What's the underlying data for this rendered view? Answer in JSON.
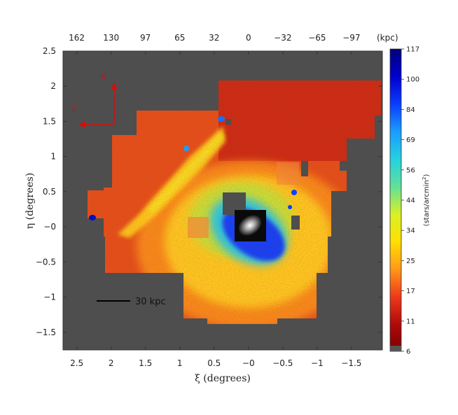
{
  "chart_data": {
    "type": "heatmap",
    "xlabel": "ξ (degrees)",
    "ylabel": "η (degrees)",
    "xlim": [
      2.7,
      -1.95
    ],
    "ylim": [
      -1.75,
      2.5
    ],
    "x_ticks": [
      "2.5",
      "2",
      "1.5",
      "1",
      "0.5",
      "−0",
      "−0.5",
      "−1",
      "−1.5"
    ],
    "x_tick_values": [
      2.5,
      2,
      1.5,
      1,
      0.5,
      0,
      -0.5,
      -1,
      -1.5
    ],
    "y_ticks": [
      "2.5",
      "2",
      "1.5",
      "1",
      "0.5",
      "−0",
      "−0.5",
      "−1",
      "−1.5"
    ],
    "y_tick_values": [
      2.5,
      2,
      1.5,
      1,
      0.5,
      0,
      -0.5,
      -1,
      -1.5
    ],
    "top_ticks": [
      "162",
      "130",
      "97",
      "65",
      "32",
      "0",
      "−32",
      "−65",
      "−97"
    ],
    "top_unit": "(kpc)",
    "colorbar": {
      "label_main": "(stars/arcmin",
      "label_sup": "2",
      "label_end": ")",
      "ticks": [
        "117",
        "100",
        "84",
        "69",
        "56",
        "44",
        "34",
        "25",
        "17",
        "11",
        "6"
      ],
      "tick_values": [
        117,
        100,
        84,
        69,
        56,
        44,
        34,
        25,
        17,
        11,
        6
      ],
      "colors": [
        "#00007a",
        "#0000cc",
        "#0a3cff",
        "#1a9cff",
        "#25d0e0",
        "#60e09a",
        "#d8f028",
        "#ffe000",
        "#ff9a18",
        "#ee3a1a",
        "#b00a0a",
        "#7a0000"
      ]
    },
    "compass": {
      "north": "N",
      "east": "E"
    },
    "scale_bar": {
      "label": "30 kpc"
    },
    "colors": {
      "background": "#4e4e4e",
      "compass": "#d01010"
    }
  }
}
